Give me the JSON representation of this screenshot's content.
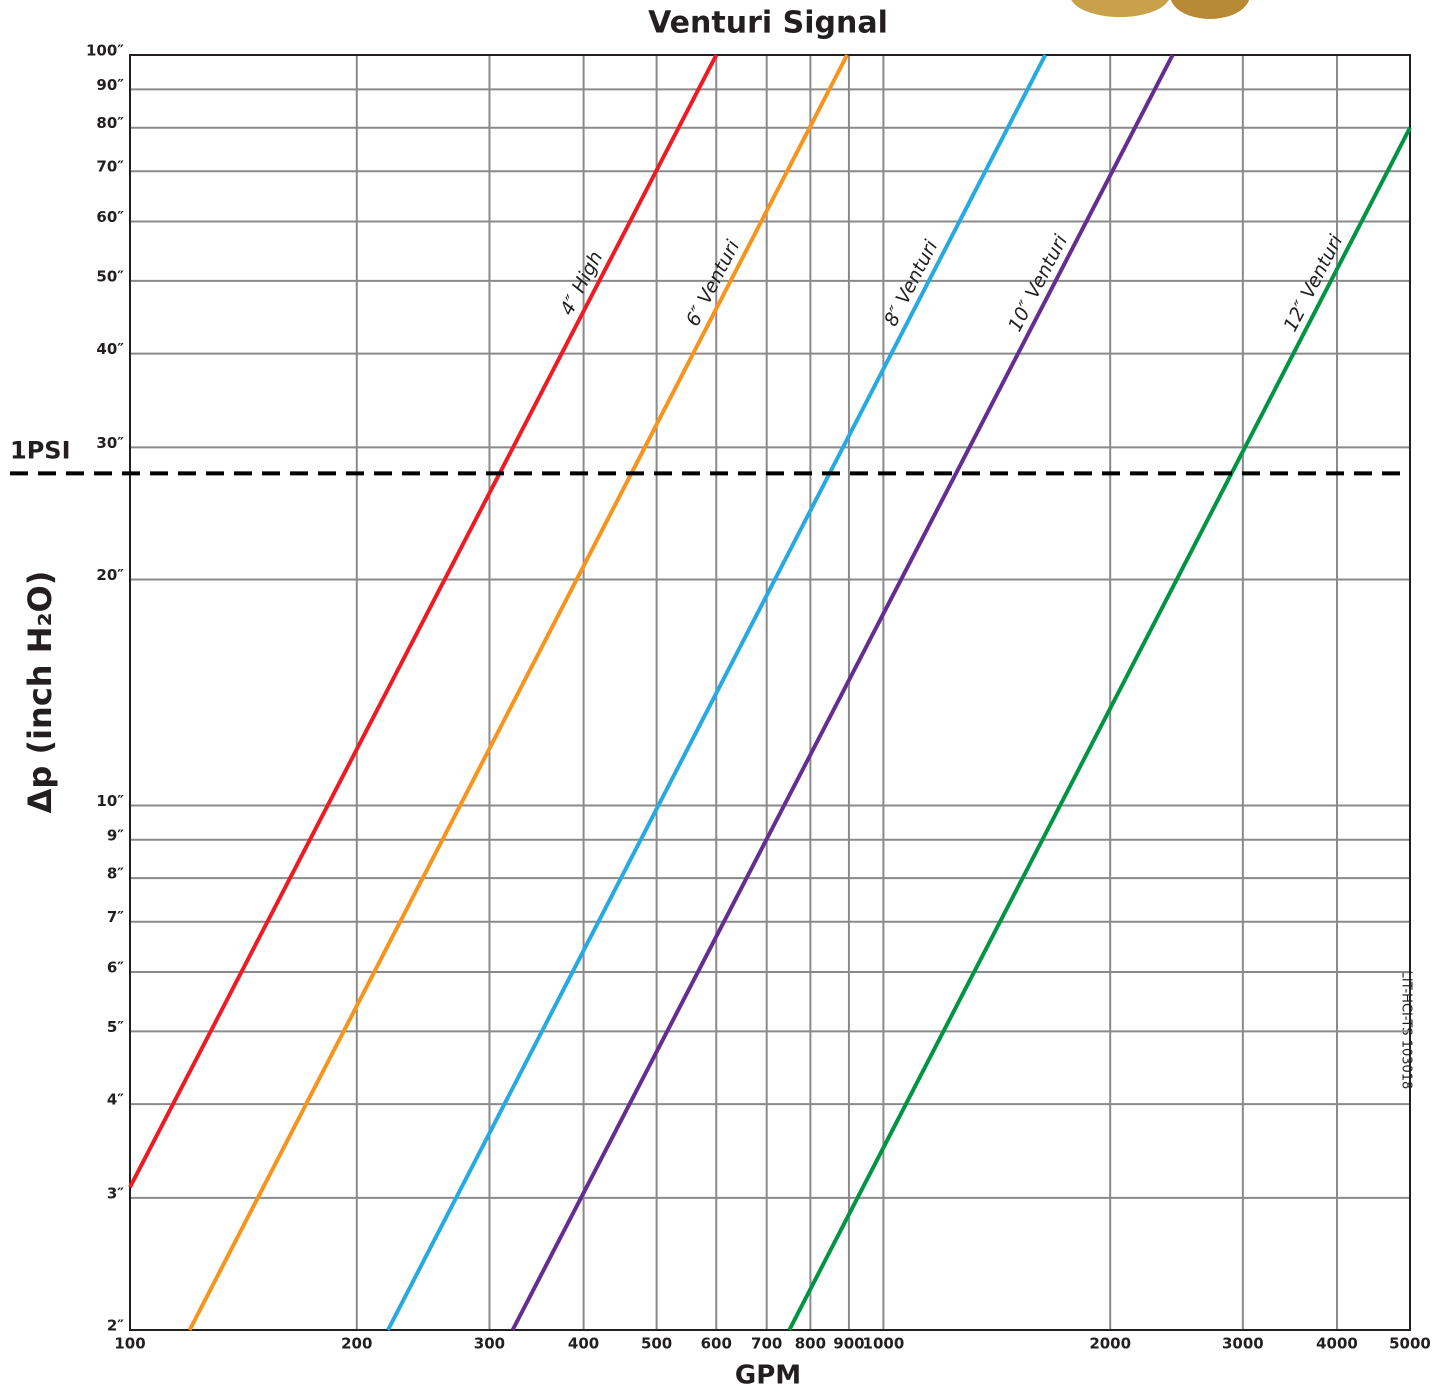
{
  "chart_data": {
    "type": "line",
    "title": "Venturi Signal",
    "x_label": "GPM",
    "y_label": "Δp (inch H₂O)",
    "side_note": "LIT-HCI-TS 103018",
    "x_scale": "log",
    "y_scale": "log",
    "grid": true,
    "xlim": [
      100,
      5000
    ],
    "ylim": [
      2,
      100
    ],
    "xticks": [
      100,
      200,
      300,
      400,
      500,
      600,
      700,
      800,
      900,
      1000,
      2000,
      3000,
      4000,
      5000
    ],
    "yticks": [
      {
        "value": 2,
        "label": "2″"
      },
      {
        "value": 3,
        "label": "3″"
      },
      {
        "value": 4,
        "label": "4″"
      },
      {
        "value": 5,
        "label": "5″"
      },
      {
        "value": 6,
        "label": "6″"
      },
      {
        "value": 7,
        "label": "7″"
      },
      {
        "value": 8,
        "label": "8″"
      },
      {
        "value": 9,
        "label": "9″"
      },
      {
        "value": 10,
        "label": "10″"
      },
      {
        "value": 20,
        "label": "20″"
      },
      {
        "value": 30,
        "label": "30″"
      },
      {
        "value": 40,
        "label": "40″"
      },
      {
        "value": 50,
        "label": "50″"
      },
      {
        "value": 60,
        "label": "60″"
      },
      {
        "value": 70,
        "label": "70″"
      },
      {
        "value": 80,
        "label": "80″"
      },
      {
        "value": 90,
        "label": "90″"
      },
      {
        "value": 100,
        "label": "100″"
      }
    ],
    "series": [
      {
        "name": "4″ High",
        "color": "#ed1c24",
        "x": [
          100,
          600
        ],
        "values": [
          3.1,
          100
        ]
      },
      {
        "name": "6″ Venturi",
        "color": "#f7941d",
        "x": [
          120,
          895
        ],
        "values": [
          2,
          100
        ]
      },
      {
        "name": "8″ Venturi",
        "color": "#27aae1",
        "x": [
          220,
          1640
        ],
        "values": [
          2,
          100
        ]
      },
      {
        "name": "10″ Venturi",
        "color": "#662d91",
        "x": [
          322,
          2420
        ],
        "values": [
          2,
          100
        ]
      },
      {
        "name": "12″ Venturi",
        "color": "#009444",
        "x": [
          750,
          5000
        ],
        "values": [
          2,
          80
        ]
      }
    ],
    "annotations": [
      {
        "label": "1PSI",
        "value": 27.7
      }
    ]
  }
}
